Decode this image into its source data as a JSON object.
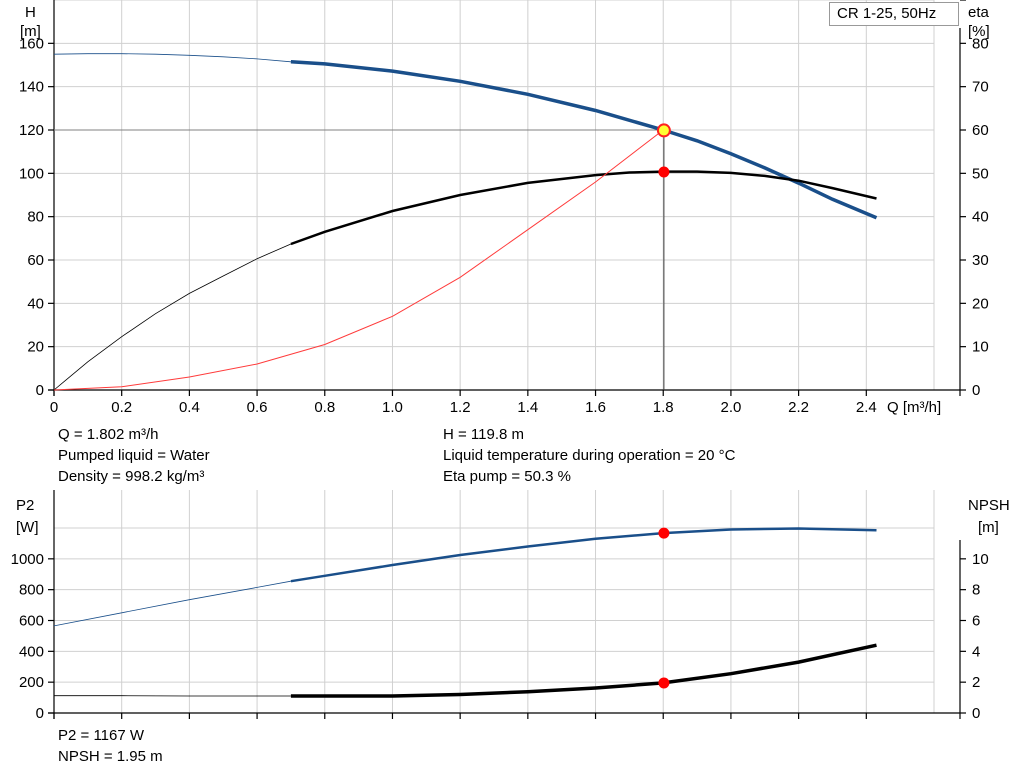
{
  "legend_label": "CR 1-25, 50Hz",
  "info_top": {
    "q": "Q = 1.802 m³/h",
    "liquid": "Pumped liquid = Water",
    "density": "Density = 998.2 kg/m³",
    "h": "H = 119.8 m",
    "temp": "Liquid temperature during operation = 20 °C",
    "eta": "Eta pump = 50.3 %"
  },
  "info_bottom": {
    "p2": "P2 = 1167 W",
    "npsh": "NPSH = 1.95 m"
  },
  "chart_data": [
    {
      "type": "line",
      "axes": {
        "x": {
          "label": "Q [m³/h]",
          "range": [
            0,
            2.6
          ],
          "ticks": [
            0,
            0.2,
            0.4,
            0.6,
            0.8,
            1.0,
            1.2,
            1.4,
            1.6,
            1.8,
            2.0,
            2.2,
            2.4
          ],
          "tick_labels": [
            "0",
            "0.2",
            "0.4",
            "0.6",
            "0.8",
            "1.0",
            "1.2",
            "1.4",
            "1.6",
            "1.8",
            "2.0",
            "2.2",
            "2.4"
          ]
        },
        "y_left": {
          "label_line1": "H",
          "label_line2": "[m]",
          "range": [
            0,
            180
          ],
          "ticks": [
            0,
            20,
            40,
            60,
            80,
            100,
            120,
            140,
            160
          ]
        },
        "y_right": {
          "label_line1": "eta",
          "label_line2": "[%]",
          "range": [
            0,
            90
          ],
          "ticks": [
            0,
            10,
            20,
            30,
            40,
            50,
            60,
            70,
            80
          ]
        }
      },
      "grid": true,
      "legend_position": "top-right",
      "series": [
        {
          "key": "head",
          "axis": "left",
          "color": "#1a4f8a",
          "thin_x": [
            0,
            0.1,
            0.2,
            0.3,
            0.4,
            0.5,
            0.6,
            0.7
          ],
          "thin_y": [
            155,
            155.2,
            155.2,
            155,
            154.5,
            153.8,
            152.8,
            151.5
          ],
          "thick_x": [
            0.7,
            0.8,
            1.0,
            1.2,
            1.4,
            1.6,
            1.8,
            1.9,
            2.0,
            2.1,
            2.2,
            2.3,
            2.43
          ],
          "thick_y": [
            151.5,
            150.5,
            147.2,
            142.5,
            136.5,
            129,
            120,
            115,
            109,
            102.5,
            95.5,
            88,
            79.5
          ]
        },
        {
          "key": "eta",
          "axis": "right",
          "color": "#000000",
          "thin_x": [
            0,
            0.1,
            0.2,
            0.3,
            0.4,
            0.5,
            0.6,
            0.7
          ],
          "thin_y": [
            0,
            6.5,
            12.3,
            17.6,
            22.3,
            26.3,
            30.3,
            33.7
          ],
          "thick_x": [
            0.7,
            0.8,
            1.0,
            1.2,
            1.4,
            1.6,
            1.7,
            1.8,
            1.9,
            2.0,
            2.1,
            2.2,
            2.3,
            2.43
          ],
          "thick_y": [
            33.7,
            36.5,
            41.3,
            45.0,
            47.8,
            49.6,
            50.2,
            50.4,
            50.4,
            50.1,
            49.4,
            48.3,
            46.6,
            44.2
          ]
        },
        {
          "key": "system_curve",
          "axis": "left",
          "color": "#ff3b3b",
          "x": [
            0,
            0.2,
            0.4,
            0.6,
            0.8,
            1.0,
            1.2,
            1.4,
            1.6,
            1.8
          ],
          "y": [
            0,
            1.5,
            6,
            12,
            21,
            34,
            52,
            74,
            96,
            120
          ]
        }
      ],
      "reference_lines": {
        "h": 120,
        "q": 1.802
      },
      "duty_point": {
        "q": 1.802,
        "h": 119.8
      },
      "eta_point": {
        "q": 1.802,
        "eta": 50.3
      }
    },
    {
      "type": "line",
      "axes": {
        "x": {
          "range": [
            0,
            2.6
          ],
          "ticks": [
            0,
            0.2,
            0.4,
            0.6,
            0.8,
            1.0,
            1.2,
            1.4,
            1.6,
            1.8,
            2.0,
            2.2,
            2.4
          ]
        },
        "y_left": {
          "label_line1": "P2",
          "label_line2": "[W]",
          "range": [
            0,
            1200
          ],
          "ticks": [
            0,
            200,
            400,
            600,
            800,
            1000
          ]
        },
        "y_right": {
          "label_line1": "NPSH",
          "label_line2": "[m]",
          "range": [
            0,
            12
          ],
          "ticks": [
            0,
            2,
            4,
            6,
            8,
            10
          ]
        }
      },
      "grid": true,
      "series": [
        {
          "key": "p2",
          "axis": "left",
          "color": "#1a4f8a",
          "thin_x": [
            0,
            0.2,
            0.4,
            0.6,
            0.7
          ],
          "thin_y": [
            565,
            650,
            735,
            815,
            855
          ],
          "thick_x": [
            0.7,
            0.8,
            1.0,
            1.2,
            1.4,
            1.6,
            1.8,
            2.0,
            2.2,
            2.43
          ],
          "thick_y": [
            855,
            890,
            960,
            1025,
            1080,
            1130,
            1167,
            1190,
            1197,
            1185
          ]
        },
        {
          "key": "npsh",
          "axis": "right",
          "color": "#000000",
          "thin_x": [
            0,
            0.2,
            0.4,
            0.6,
            0.7
          ],
          "thin_y": [
            1.12,
            1.12,
            1.1,
            1.1,
            1.1
          ],
          "thick_x": [
            0.7,
            0.8,
            1.0,
            1.2,
            1.4,
            1.6,
            1.8,
            2.0,
            2.2,
            2.43
          ],
          "thick_y": [
            1.1,
            1.1,
            1.1,
            1.2,
            1.38,
            1.62,
            1.95,
            2.55,
            3.3,
            4.4
          ]
        }
      ],
      "points": [
        {
          "q": 1.802,
          "axis": "left",
          "value": 1167
        },
        {
          "q": 1.802,
          "axis": "right",
          "value": 1.95
        }
      ]
    }
  ]
}
